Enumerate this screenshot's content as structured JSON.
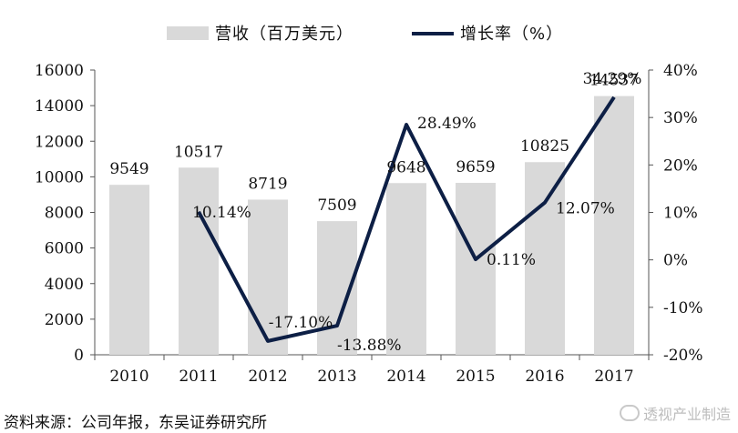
{
  "chart_data": {
    "type": "bar",
    "categories": [
      "2010",
      "2011",
      "2012",
      "2013",
      "2014",
      "2015",
      "2016",
      "2017"
    ],
    "series": [
      {
        "name": "营收（百万美元）",
        "type": "bar",
        "axis": "left",
        "values": [
          9549,
          10517,
          8719,
          7509,
          9648,
          9659,
          10825,
          14537
        ],
        "color": "#d9d9d9"
      },
      {
        "name": "增长率（%）",
        "type": "line",
        "axis": "right",
        "values": [
          null,
          10.14,
          -17.1,
          -13.88,
          28.49,
          0.11,
          12.07,
          34.29
        ],
        "labels": [
          "",
          "10.14%",
          "-17.10%",
          "-13.88%",
          "28.49%",
          "0.11%",
          "12.07%",
          "34.29%"
        ],
        "color": "#0d1f45"
      }
    ],
    "bar_labels": [
      "9549",
      "10517",
      "8719",
      "7509",
      "9648",
      "9659",
      "10825",
      "14537"
    ],
    "y_left": {
      "min": 0,
      "max": 16000,
      "ticks": [
        "0",
        "2000",
        "4000",
        "6000",
        "8000",
        "10000",
        "12000",
        "14000",
        "16000"
      ]
    },
    "y_right": {
      "min": -20,
      "max": 40,
      "ticks": [
        "-20%",
        "-10%",
        "0%",
        "10%",
        "20%",
        "30%",
        "40%"
      ]
    },
    "legend_position": "top"
  },
  "source_text": "资料来源：公司年报，东吴证券研究所",
  "watermark_text": "透视产业制造"
}
